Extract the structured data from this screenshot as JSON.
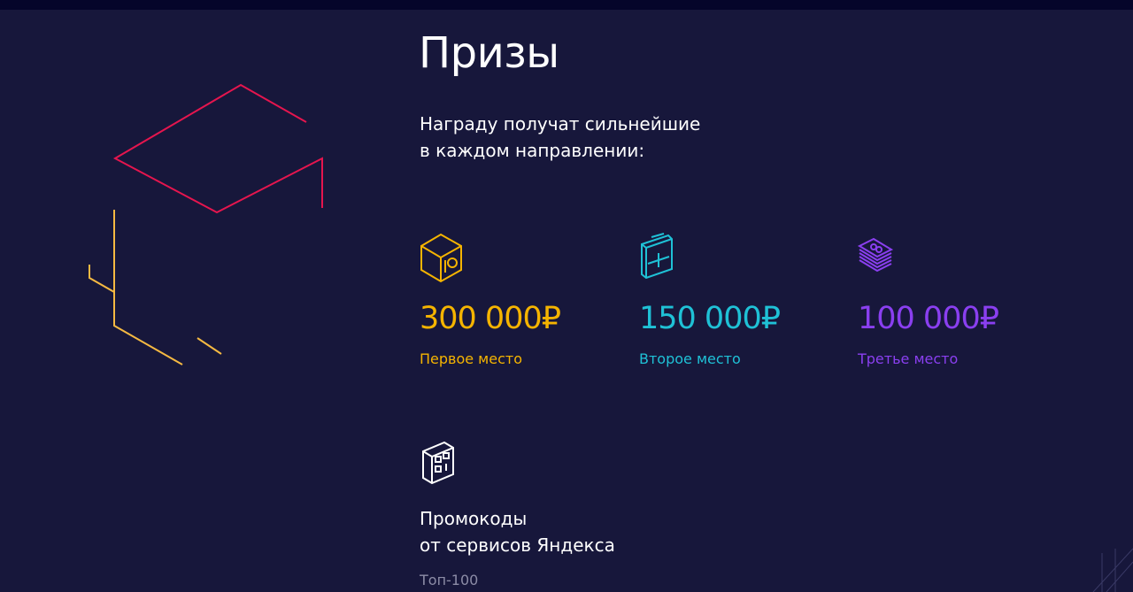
{
  "title": "Призы",
  "lead": [
    "Награду получат сильнейшие",
    "в каждом направлении:"
  ],
  "prizes": [
    {
      "amount": "300 000₽",
      "place": "Первое место",
      "color": "#f5b400",
      "icon": "safe-icon"
    },
    {
      "amount": "150 000₽",
      "place": "Второе место",
      "color": "#1fc1d6",
      "icon": "briefcase-icon"
    },
    {
      "amount": "100 000₽",
      "place": "Третье место",
      "color": "#8a3ff0",
      "icon": "money-stack-icon"
    }
  ],
  "promo": {
    "title": [
      "Промокоды",
      "от сервисов Яндекса"
    ],
    "subtitle": "Топ-100",
    "icon": "qr-box-icon"
  },
  "colors": {
    "background": "#17173b",
    "accent_red": "#e5154e",
    "accent_yellow": "#f5b942"
  }
}
